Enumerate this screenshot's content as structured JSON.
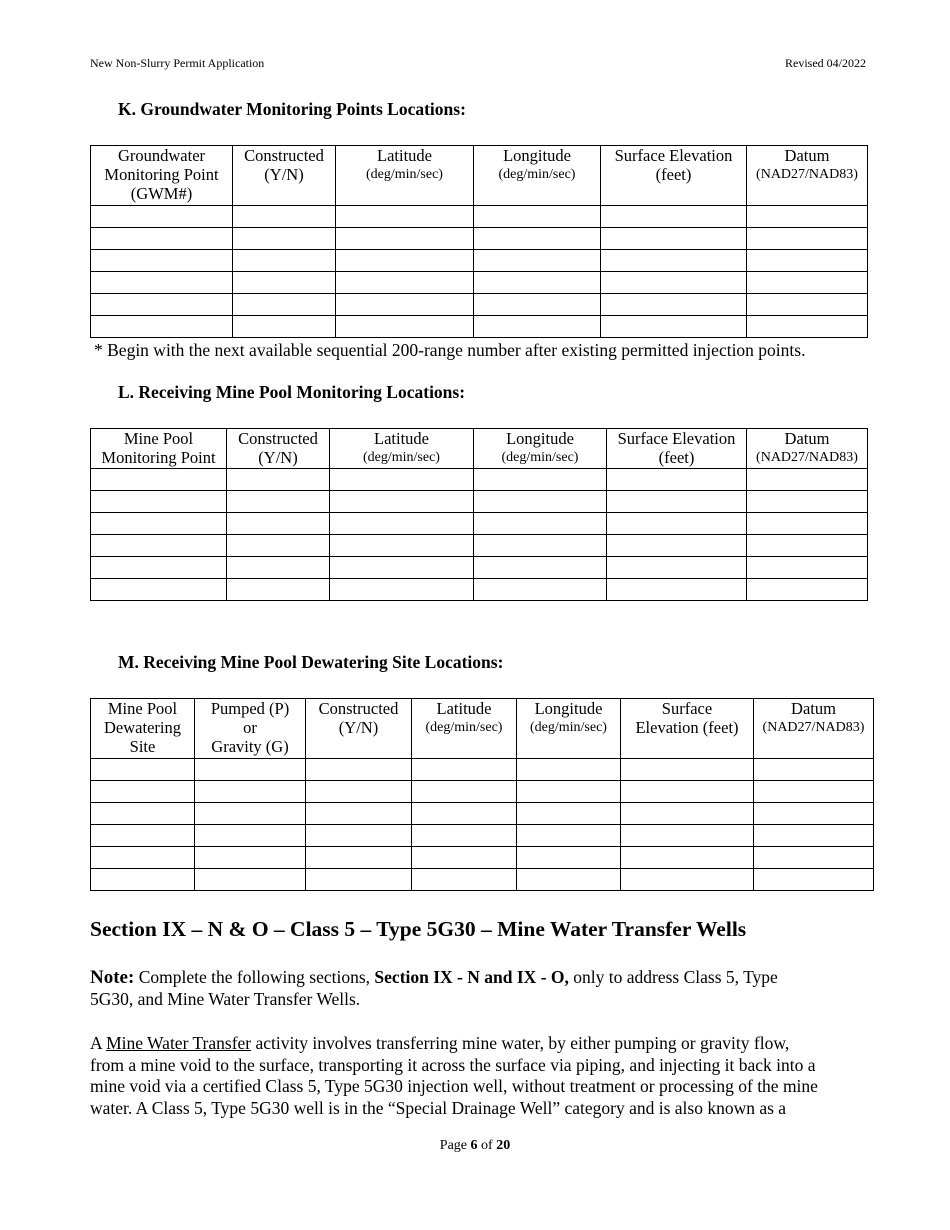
{
  "header": {
    "left": "New Non-Slurry Permit Application",
    "right": "Revised 04/2022"
  },
  "sections": {
    "k": {
      "title": "K.  Groundwater Monitoring Points Locations:",
      "columns": [
        {
          "lines": [
            "Groundwater",
            "Monitoring Point",
            "(GWM#)"
          ]
        },
        {
          "lines": [
            "Constructed",
            "(Y/N)"
          ]
        },
        {
          "lines": [
            "Latitude"
          ],
          "sub": "(deg/min/sec)"
        },
        {
          "lines": [
            "Longitude"
          ],
          "sub": "(deg/min/sec)"
        },
        {
          "lines": [
            "Surface Elevation",
            "(feet)"
          ]
        },
        {
          "lines": [
            "Datum"
          ],
          "sub": "(NAD27/NAD83)"
        }
      ],
      "rows": 6,
      "footnote": "*  Begin with the next available sequential 200-range number after existing permitted injection points."
    },
    "l": {
      "title": "L.  Receiving Mine Pool Monitoring Locations:",
      "columns": [
        {
          "lines": [
            "Mine Pool",
            "Monitoring Point"
          ]
        },
        {
          "lines": [
            "Constructed",
            "(Y/N)"
          ]
        },
        {
          "lines": [
            "Latitude"
          ],
          "sub": "(deg/min/sec)"
        },
        {
          "lines": [
            "Longitude"
          ],
          "sub": "(deg/min/sec)"
        },
        {
          "lines": [
            "Surface Elevation",
            "(feet)"
          ]
        },
        {
          "lines": [
            "Datum"
          ],
          "sub": "(NAD27/NAD83)"
        }
      ],
      "rows": 6
    },
    "m": {
      "title": "M.  Receiving Mine Pool Dewatering Site Locations:",
      "columns": [
        {
          "lines": [
            "Mine Pool",
            "Dewatering",
            "Site"
          ]
        },
        {
          "lines": [
            "Pumped (P)",
            "or",
            "Gravity (G)"
          ]
        },
        {
          "lines": [
            "Constructed",
            "(Y/N)"
          ]
        },
        {
          "lines": [
            "Latitude"
          ],
          "sub": "(deg/min/sec)"
        },
        {
          "lines": [
            "Longitude"
          ],
          "sub": "(deg/min/sec)"
        },
        {
          "lines": [
            "Surface",
            "Elevation (feet)"
          ]
        },
        {
          "lines": [
            "Datum"
          ],
          "sub": "(NAD27/NAD83)"
        }
      ],
      "rows": 6
    }
  },
  "section_ix": {
    "title": "Section IX – N & O – Class 5 – Type 5G30 – Mine Water Transfer Wells",
    "note_label": "Note:",
    "note_text1": "  Complete the following sections, ",
    "note_bold": "Section IX - N and IX - O,",
    "note_text2": " only to address Class 5, Type",
    "note_line2": "5G30, and Mine Water Transfer Wells.",
    "para_prefix": "A ",
    "para_underlined": "Mine Water Transfer",
    "para_line1_rest": " activity involves transferring mine water, by either pumping or gravity flow,",
    "para_lines": [
      "from a mine void to the surface, transporting it across the surface via piping, and injecting it back into a",
      "mine void via a certified Class 5, Type 5G30 injection well, without treatment or processing of the mine",
      "water. A Class 5, Type 5G30 well is in the “Special Drainage Well” category and is also known as a"
    ]
  },
  "footer": {
    "page_label": "Page ",
    "page": "6",
    "of": " of ",
    "total": "20"
  }
}
